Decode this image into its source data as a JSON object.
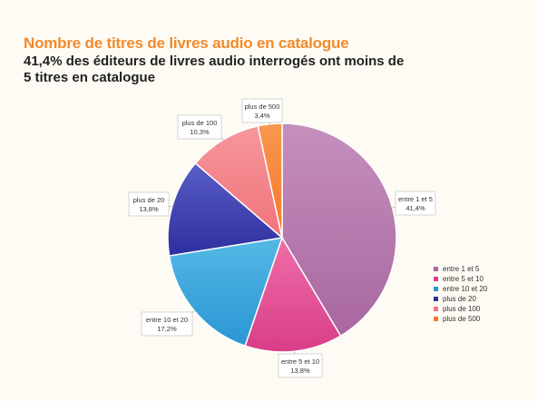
{
  "header": {
    "title": "Nombre de titres de livres audio en catalogue",
    "subtitle": "41,4% des éditeurs de livres audio interrogés ont moins de 5 titres en catalogue"
  },
  "chart_data": {
    "type": "pie",
    "title": "Nombre de titres de livres audio en catalogue",
    "subtitle": "41,4% des éditeurs de livres audio interrogés ont moins de 5 titres en catalogue",
    "legend_position": "bottom-right",
    "slices": [
      {
        "label": "entre 1 et 5",
        "value": 41.4,
        "value_label": "41,4%",
        "color": "#a8679f",
        "color_light": "#c58fbd"
      },
      {
        "label": "entre 5 et 10",
        "value": 13.8,
        "value_label": "13,8%",
        "color": "#d93d87",
        "color_light": "#ee6fa9"
      },
      {
        "label": "entre 10 et 20",
        "value": 17.2,
        "value_label": "17,2%",
        "color": "#2a96d3",
        "color_light": "#55b8e6"
      },
      {
        "label": "plus de 20",
        "value": 13.8,
        "value_label": "13,8%",
        "color": "#2c2f9e",
        "color_light": "#5a5ec6"
      },
      {
        "label": "plus de 100",
        "value": 10.3,
        "value_label": "10,3%",
        "color": "#f0737a",
        "color_light": "#f6979c"
      },
      {
        "label": "plus de 500",
        "value": 3.4,
        "value_label": "3,4%",
        "color": "#f4792b",
        "color_light": "#f7974f"
      }
    ]
  }
}
